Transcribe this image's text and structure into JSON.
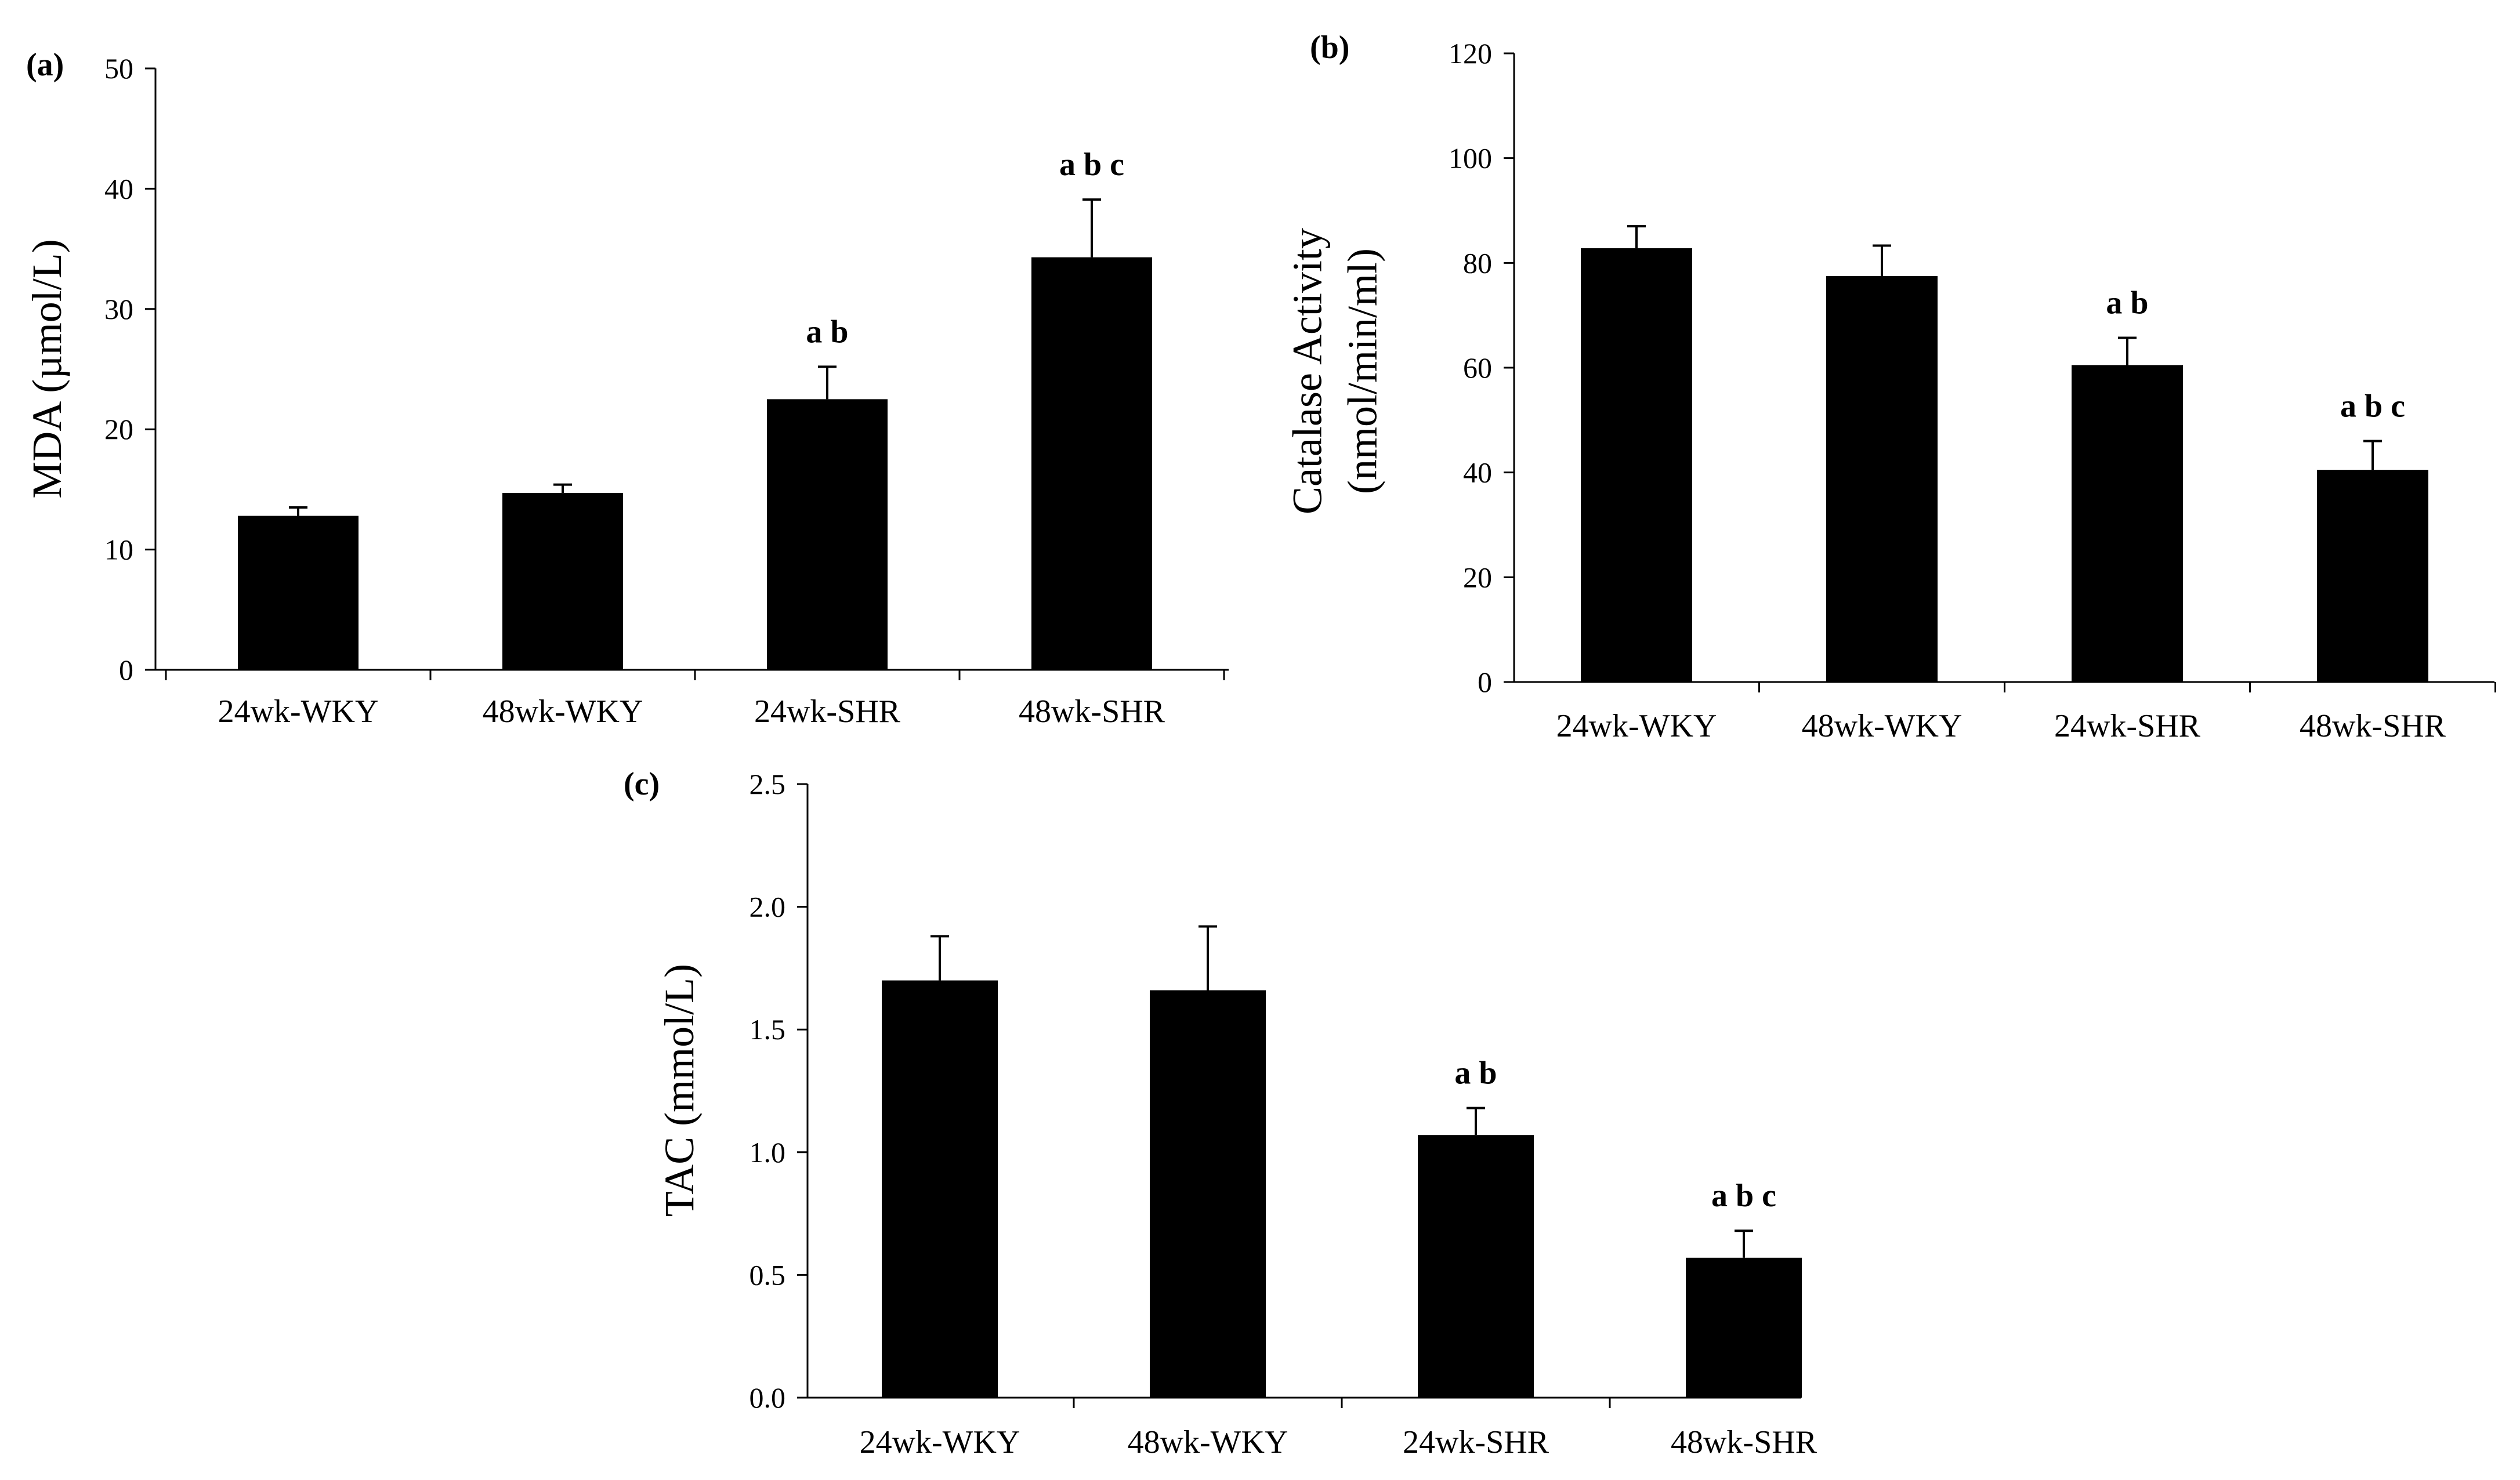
{
  "chart_data": [
    {
      "type": "bar",
      "panel_label": "(a)",
      "title": "",
      "xlabel": "",
      "ylabel_lines": [
        "MDA (µmol/L)"
      ],
      "ylim": [
        0,
        50
      ],
      "yticks": [
        0,
        10,
        20,
        30,
        40,
        50
      ],
      "ytick_labels": [
        "0",
        "10",
        "20",
        "30",
        "40",
        "50"
      ],
      "categories": [
        "24wk-WKY",
        "48wk-WKY",
        "24wk-SHR",
        "48wk-SHR"
      ],
      "values": [
        12.8,
        14.7,
        22.5,
        34.3
      ],
      "errors": [
        0.7,
        0.7,
        2.7,
        4.8
      ],
      "annotations": [
        "",
        "",
        "a b",
        "a b c"
      ],
      "bar_color": "#000000"
    },
    {
      "type": "bar",
      "panel_label": "(b)",
      "title": "",
      "xlabel": "",
      "ylabel_lines": [
        "Catalase Activity",
        "(nmol/min/ml)"
      ],
      "ylim": [
        0,
        120
      ],
      "yticks": [
        0,
        20,
        40,
        60,
        80,
        100,
        120
      ],
      "ytick_labels": [
        "0",
        "20",
        "40",
        "60",
        "80",
        "100",
        "120"
      ],
      "categories": [
        "24wk-WKY",
        "48wk-WKY",
        "24wk-SHR",
        "48wk-SHR"
      ],
      "values": [
        82.8,
        77.5,
        60.5,
        40.5
      ],
      "errors": [
        4.2,
        5.8,
        5.2,
        5.5
      ],
      "annotations": [
        "",
        "",
        "a b",
        "a b c"
      ],
      "bar_color": "#000000"
    },
    {
      "type": "bar",
      "panel_label": "(c)",
      "title": "",
      "xlabel": "",
      "ylabel_lines": [
        "TAC (mmol/L)"
      ],
      "ylim": [
        0,
        2.5
      ],
      "yticks": [
        0,
        0.5,
        1.0,
        1.5,
        2.0,
        2.5
      ],
      "ytick_labels": [
        "0.0",
        "0.5",
        "1.0",
        "1.5",
        "2.0",
        "2.5"
      ],
      "categories": [
        "24wk-WKY",
        "48wk-WKY",
        "24wk-SHR",
        "48wk-SHR"
      ],
      "values": [
        1.7,
        1.66,
        1.07,
        0.57
      ],
      "errors": [
        0.18,
        0.26,
        0.11,
        0.11
      ],
      "annotations": [
        "",
        "",
        "a b",
        "a b c"
      ],
      "bar_color": "#000000"
    }
  ]
}
